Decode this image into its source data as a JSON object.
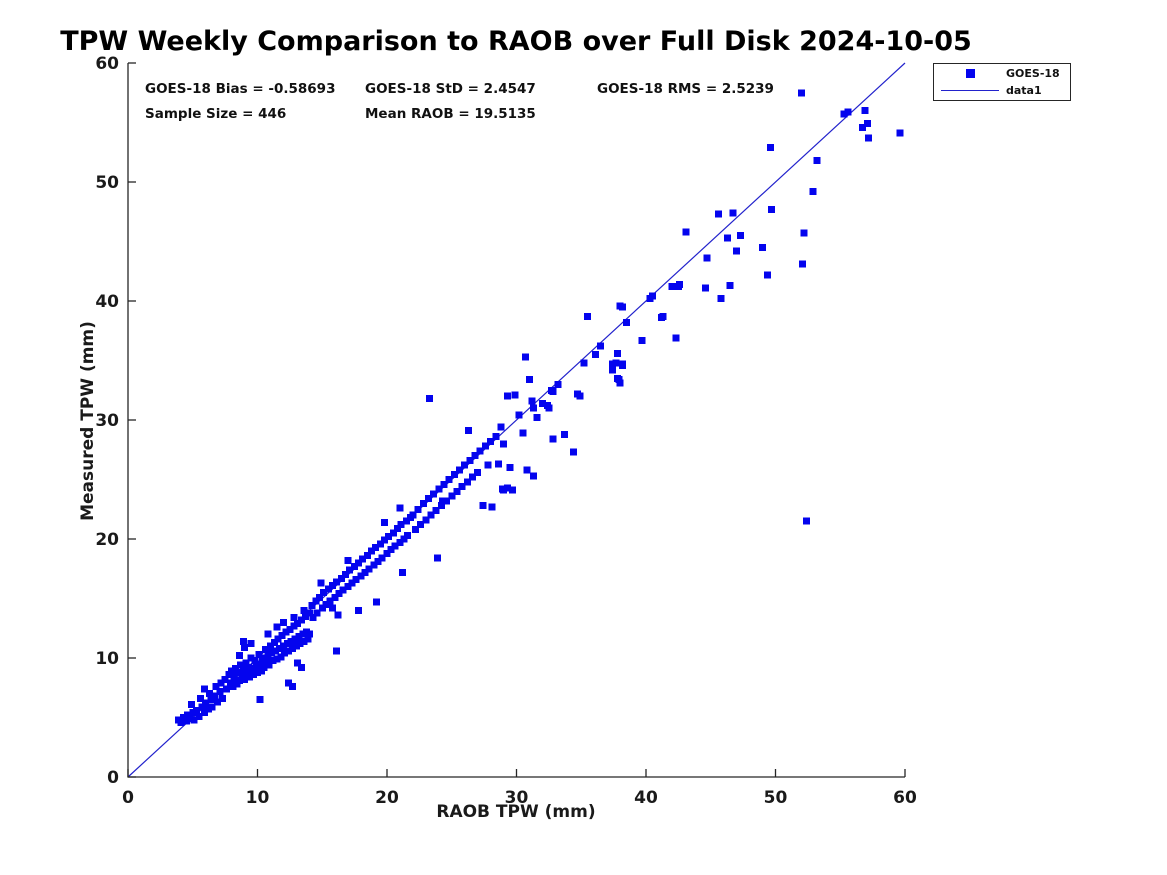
{
  "colors": {
    "marker": "#0404ee",
    "line": "#2222cc",
    "axis": "#262626",
    "tick_label": "#1a1a1a",
    "background": "#ffffff"
  },
  "chart_data": {
    "type": "scatter",
    "title": "TPW Weekly Comparison to RAOB over Full Disk 2024-10-05",
    "xlabel": "RAOB TPW (mm)",
    "ylabel": "Measured TPW (mm)",
    "xlim": [
      0,
      60
    ],
    "ylim": [
      0,
      60
    ],
    "xticks": [
      0,
      10,
      20,
      30,
      40,
      50,
      60
    ],
    "yticks": [
      0,
      10,
      20,
      30,
      40,
      50,
      60
    ],
    "grid": false,
    "stats": {
      "bias": "GOES-18 Bias = -0.58693",
      "std": "GOES-18 StD = 2.4547",
      "rms": "GOES-18 RMS = 2.5239",
      "sample": "Sample Size = 446",
      "mean_raob": "Mean RAOB = 19.5135"
    },
    "legend": {
      "position": "outside-top-right",
      "entries": [
        {
          "label": "GOES-18",
          "type": "marker"
        },
        {
          "label": "data1",
          "type": "line"
        }
      ]
    },
    "reference_line": {
      "name": "data1",
      "from": [
        0,
        0
      ],
      "to": [
        60,
        60
      ]
    },
    "series": [
      {
        "name": "GOES-18",
        "marker": "square",
        "color": "#0404ee",
        "points": [
          [
            3.9,
            4.8
          ],
          [
            4.1,
            4.6
          ],
          [
            4.3,
            5.0
          ],
          [
            4.5,
            4.7
          ],
          [
            4.6,
            5.2
          ],
          [
            4.8,
            4.9
          ],
          [
            5.0,
            5.4
          ],
          [
            5.1,
            4.8
          ],
          [
            5.3,
            5.6
          ],
          [
            5.5,
            5.1
          ],
          [
            5.7,
            5.9
          ],
          [
            5.9,
            5.4
          ],
          [
            6.0,
            6.2
          ],
          [
            6.2,
            5.7
          ],
          [
            6.4,
            6.5
          ],
          [
            6.5,
            5.9
          ],
          [
            6.7,
            6.8
          ],
          [
            6.9,
            6.3
          ],
          [
            7.1,
            7.2
          ],
          [
            7.3,
            6.6
          ],
          [
            5.9,
            7.4
          ],
          [
            6.3,
            7.0
          ],
          [
            6.8,
            7.6
          ],
          [
            7.2,
            7.9
          ],
          [
            4.9,
            6.1
          ],
          [
            5.6,
            6.6
          ],
          [
            7.5,
            8.2
          ],
          [
            7.6,
            7.4
          ],
          [
            7.8,
            8.6
          ],
          [
            7.9,
            7.9
          ],
          [
            8.0,
            8.9
          ],
          [
            8.1,
            7.6
          ],
          [
            8.2,
            8.3
          ],
          [
            8.3,
            9.1
          ],
          [
            8.4,
            7.8
          ],
          [
            8.5,
            8.8
          ],
          [
            8.6,
            8.1
          ],
          [
            8.6,
            10.2
          ],
          [
            8.7,
            9.4
          ],
          [
            8.8,
            8.5
          ],
          [
            8.9,
            9.0
          ],
          [
            9.0,
            8.2
          ],
          [
            9.0,
            10.9
          ],
          [
            9.1,
            9.6
          ],
          [
            9.2,
            8.8
          ],
          [
            9.3,
            9.2
          ],
          [
            9.4,
            8.4
          ],
          [
            9.5,
            10.0
          ],
          [
            9.5,
            11.2
          ],
          [
            9.6,
            9.1
          ],
          [
            9.7,
            8.6
          ],
          [
            9.8,
            9.8
          ],
          [
            9.9,
            9.3
          ],
          [
            10.0,
            8.8
          ],
          [
            10.1,
            10.3
          ],
          [
            10.2,
            6.5
          ],
          [
            10.2,
            9.5
          ],
          [
            10.3,
            8.9
          ],
          [
            10.4,
            10.0
          ],
          [
            10.5,
            9.2
          ],
          [
            10.6,
            10.7
          ],
          [
            10.7,
            9.7
          ],
          [
            10.8,
            10.2
          ],
          [
            10.8,
            12.0
          ],
          [
            10.9,
            9.4
          ],
          [
            11.0,
            11.0
          ],
          [
            11.1,
            10.4
          ],
          [
            11.2,
            9.8
          ],
          [
            11.3,
            11.3
          ],
          [
            11.4,
            10.6
          ],
          [
            11.5,
            9.9
          ],
          [
            11.5,
            12.6
          ],
          [
            11.6,
            11.6
          ],
          [
            11.7,
            10.8
          ],
          [
            11.8,
            10.1
          ],
          [
            11.9,
            11.9
          ],
          [
            12.0,
            11.0
          ],
          [
            12.0,
            13.0
          ],
          [
            12.1,
            10.4
          ],
          [
            12.2,
            12.2
          ],
          [
            12.3,
            11.2
          ],
          [
            12.4,
            7.9
          ],
          [
            12.4,
            10.6
          ],
          [
            12.5,
            12.4
          ],
          [
            12.6,
            11.4
          ],
          [
            12.7,
            7.6
          ],
          [
            12.7,
            10.8
          ],
          [
            12.8,
            12.7
          ],
          [
            12.8,
            13.4
          ],
          [
            12.9,
            11.6
          ],
          [
            13.0,
            11.0
          ],
          [
            13.1,
            9.6
          ],
          [
            13.1,
            12.9
          ],
          [
            13.2,
            11.8
          ],
          [
            13.3,
            11.2
          ],
          [
            13.4,
            9.2
          ],
          [
            13.4,
            13.2
          ],
          [
            13.5,
            12.0
          ],
          [
            13.6,
            11.4
          ],
          [
            13.6,
            14.0
          ],
          [
            13.7,
            13.5
          ],
          [
            13.8,
            12.2
          ],
          [
            13.9,
            11.6
          ],
          [
            14.0,
            12.0
          ],
          [
            14.0,
            13.8
          ],
          [
            8.9,
            11.4
          ],
          [
            14.2,
            14.4
          ],
          [
            14.3,
            13.4
          ],
          [
            14.5,
            14.8
          ],
          [
            14.6,
            13.8
          ],
          [
            14.8,
            15.1
          ],
          [
            14.9,
            16.3
          ],
          [
            15.0,
            14.2
          ],
          [
            15.1,
            15.5
          ],
          [
            15.3,
            14.5
          ],
          [
            15.5,
            15.8
          ],
          [
            15.6,
            14.8
          ],
          [
            15.8,
            14.2
          ],
          [
            15.8,
            16.1
          ],
          [
            16.0,
            15.1
          ],
          [
            16.1,
            10.6
          ],
          [
            16.1,
            16.4
          ],
          [
            16.3,
            15.4
          ],
          [
            16.2,
            13.6
          ],
          [
            16.5,
            16.7
          ],
          [
            16.6,
            15.7
          ],
          [
            16.8,
            17.0
          ],
          [
            17.0,
            16.0
          ],
          [
            17.0,
            18.2
          ],
          [
            17.1,
            17.4
          ],
          [
            17.3,
            16.3
          ],
          [
            17.5,
            17.7
          ],
          [
            17.6,
            16.6
          ],
          [
            17.8,
            14.0
          ],
          [
            17.8,
            18.0
          ],
          [
            18.0,
            16.9
          ],
          [
            18.1,
            18.3
          ],
          [
            18.3,
            17.2
          ],
          [
            18.5,
            18.6
          ],
          [
            18.6,
            17.5
          ],
          [
            18.8,
            19.0
          ],
          [
            19.0,
            17.8
          ],
          [
            19.1,
            19.3
          ],
          [
            19.2,
            14.7
          ],
          [
            19.3,
            18.1
          ],
          [
            19.5,
            19.6
          ],
          [
            19.6,
            18.4
          ],
          [
            19.8,
            19.9
          ],
          [
            19.8,
            21.4
          ],
          [
            20.0,
            18.8
          ],
          [
            20.1,
            20.2
          ],
          [
            20.3,
            19.1
          ],
          [
            20.5,
            20.5
          ],
          [
            20.6,
            19.4
          ],
          [
            20.8,
            20.9
          ],
          [
            21.0,
            19.7
          ],
          [
            21.0,
            22.6
          ],
          [
            21.1,
            21.2
          ],
          [
            21.2,
            17.2
          ],
          [
            21.3,
            20.0
          ],
          [
            21.5,
            21.5
          ],
          [
            21.6,
            20.3
          ],
          [
            21.8,
            21.8
          ],
          [
            22.0,
            22.0
          ],
          [
            22.2,
            20.8
          ],
          [
            22.4,
            22.5
          ],
          [
            22.6,
            21.2
          ],
          [
            22.8,
            23.0
          ],
          [
            23.0,
            21.6
          ],
          [
            23.2,
            23.4
          ],
          [
            23.3,
            31.8
          ],
          [
            23.4,
            22.0
          ],
          [
            23.6,
            23.8
          ],
          [
            23.8,
            22.4
          ],
          [
            23.9,
            18.4
          ],
          [
            24.0,
            24.2
          ],
          [
            24.2,
            22.8
          ],
          [
            24.3,
            23.2
          ],
          [
            24.4,
            24.6
          ],
          [
            24.6,
            23.2
          ],
          [
            24.8,
            25.0
          ],
          [
            25.0,
            23.6
          ],
          [
            25.2,
            25.4
          ],
          [
            25.4,
            24.0
          ],
          [
            25.6,
            25.8
          ],
          [
            25.8,
            24.4
          ],
          [
            26.0,
            26.2
          ],
          [
            26.2,
            24.8
          ],
          [
            26.3,
            29.1
          ],
          [
            26.4,
            26.6
          ],
          [
            26.6,
            25.2
          ],
          [
            26.8,
            27.0
          ],
          [
            27.0,
            25.6
          ],
          [
            27.2,
            27.4
          ],
          [
            27.4,
            22.8
          ],
          [
            27.6,
            27.8
          ],
          [
            27.8,
            26.2
          ],
          [
            28.0,
            28.2
          ],
          [
            28.1,
            22.7
          ],
          [
            28.4,
            28.6
          ],
          [
            28.6,
            26.3
          ],
          [
            28.9,
            24.2
          ],
          [
            29.0,
            24.1
          ],
          [
            29.3,
            24.3
          ],
          [
            29.3,
            32.0
          ],
          [
            29.5,
            26.0
          ],
          [
            29.7,
            24.1
          ],
          [
            29.9,
            32.1
          ],
          [
            29.0,
            28.0
          ],
          [
            28.8,
            29.4
          ],
          [
            30.2,
            30.4
          ],
          [
            30.5,
            28.9
          ],
          [
            30.7,
            35.3
          ],
          [
            30.8,
            25.8
          ],
          [
            31.0,
            33.4
          ],
          [
            31.2,
            31.6
          ],
          [
            31.3,
            25.3
          ],
          [
            31.3,
            31.0
          ],
          [
            31.6,
            30.2
          ],
          [
            32.0,
            31.4
          ],
          [
            32.4,
            31.2
          ],
          [
            32.5,
            31.0
          ],
          [
            32.7,
            32.5
          ],
          [
            32.8,
            28.4
          ],
          [
            32.8,
            32.4
          ],
          [
            33.2,
            33.0
          ],
          [
            33.7,
            28.8
          ],
          [
            34.4,
            27.3
          ],
          [
            34.7,
            32.2
          ],
          [
            34.9,
            32.0
          ],
          [
            35.2,
            34.8
          ],
          [
            35.5,
            38.7
          ],
          [
            36.1,
            35.5
          ],
          [
            36.5,
            36.2
          ],
          [
            37.4,
            34.2
          ],
          [
            37.4,
            34.7
          ],
          [
            37.7,
            34.8
          ],
          [
            37.8,
            33.5
          ],
          [
            37.8,
            35.6
          ],
          [
            37.9,
            33.4
          ],
          [
            38.0,
            33.1
          ],
          [
            38.2,
            34.6
          ],
          [
            38.0,
            39.6
          ],
          [
            38.2,
            39.5
          ],
          [
            38.2,
            34.7
          ],
          [
            38.5,
            38.2
          ],
          [
            39.7,
            36.7
          ],
          [
            40.3,
            40.2
          ],
          [
            40.5,
            40.4
          ],
          [
            41.2,
            38.6
          ],
          [
            41.3,
            38.7
          ],
          [
            42.0,
            41.2
          ],
          [
            42.3,
            36.9
          ],
          [
            42.5,
            41.2
          ],
          [
            42.6,
            41.4
          ],
          [
            43.1,
            45.8
          ],
          [
            44.6,
            41.1
          ],
          [
            44.7,
            43.6
          ],
          [
            45.6,
            47.3
          ],
          [
            45.8,
            40.2
          ],
          [
            46.3,
            45.3
          ],
          [
            46.5,
            41.3
          ],
          [
            46.7,
            47.4
          ],
          [
            47.0,
            44.2
          ],
          [
            47.3,
            45.5
          ],
          [
            49.0,
            44.5
          ],
          [
            49.4,
            42.2
          ],
          [
            49.6,
            52.9
          ],
          [
            49.7,
            47.7
          ],
          [
            52.0,
            57.5
          ],
          [
            52.1,
            43.1
          ],
          [
            52.2,
            45.7
          ],
          [
            52.4,
            21.5
          ],
          [
            52.9,
            49.2
          ],
          [
            53.2,
            51.8
          ],
          [
            55.3,
            55.7
          ],
          [
            55.6,
            55.9
          ],
          [
            56.7,
            54.6
          ],
          [
            56.9,
            56.0
          ],
          [
            57.1,
            54.9
          ],
          [
            57.2,
            53.7
          ],
          [
            59.6,
            54.1
          ]
        ]
      }
    ]
  }
}
